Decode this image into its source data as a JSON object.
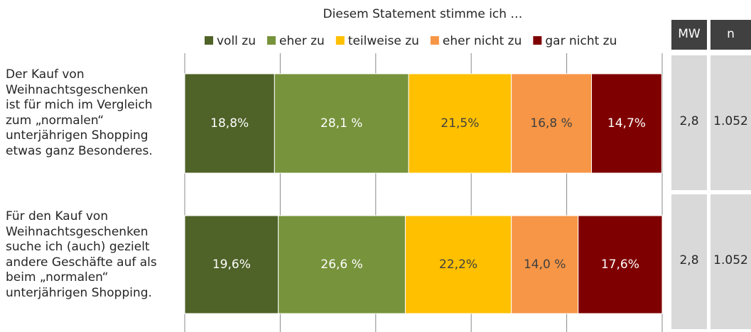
{
  "chart_data": {
    "type": "stacked-bar-horizontal",
    "title": "Diesem Statement stimme ich …",
    "categories": [
      "Der Kauf von\nWeihnachtsgeschenken\nist für mich im Vergleich\nzum „normalen“\nunterjährigen Shopping\netwas ganz Besonderes.",
      "Für den Kauf von\nWeihnachtsgeschenken\nsuche ich (auch) gezielt\nandere Geschäfte auf  als\nbeim „normalen“\nunterjährigen Shopping."
    ],
    "series": [
      {
        "name": "voll zu",
        "color": "#4f6228",
        "label_color": "#ffffff",
        "values": [
          18.8,
          19.6
        ],
        "value_labels": [
          "18,8%",
          "19,6%"
        ]
      },
      {
        "name": "eher zu",
        "color": "#77933c",
        "label_color": "#ffffff",
        "values": [
          28.1,
          26.6
        ],
        "value_labels": [
          "28,1 %",
          "26,6 %"
        ]
      },
      {
        "name": "teilweise zu",
        "color": "#ffc000",
        "label_color": "#404040",
        "values": [
          21.5,
          22.2
        ],
        "value_labels": [
          "21,5%",
          "22,2%"
        ]
      },
      {
        "name": "eher nicht zu",
        "color": "#f79646",
        "label_color": "#404040",
        "values": [
          16.8,
          14.0
        ],
        "value_labels": [
          "16,8 %",
          "14,0 %"
        ]
      },
      {
        "name": "gar nicht zu",
        "color": "#7f0000",
        "label_color": "#ffffff",
        "values": [
          14.7,
          17.6
        ],
        "value_labels": [
          "14,7%",
          "17,6%"
        ]
      }
    ],
    "xlim": [
      0,
      100
    ],
    "xticks": [
      0,
      20,
      40,
      60,
      80,
      100
    ],
    "grid": true
  },
  "table": {
    "headers": [
      "MW",
      "n"
    ],
    "rows": [
      [
        "2,8",
        "1.052"
      ],
      [
        "2,8",
        "1.052"
      ]
    ]
  }
}
